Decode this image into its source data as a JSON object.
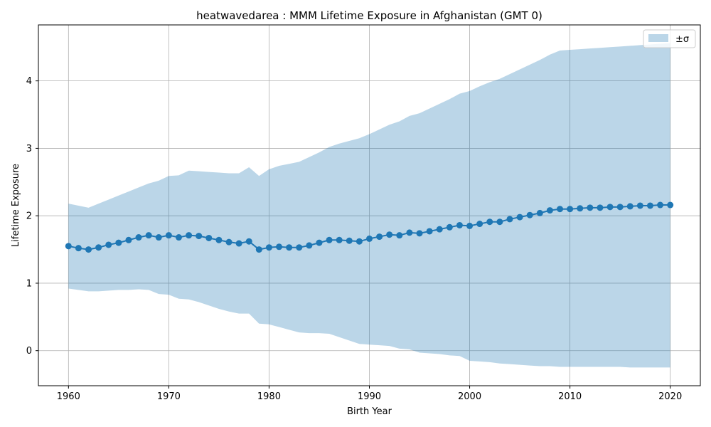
{
  "chart_data": {
    "type": "line",
    "title": "heatwavedarea : MMM Lifetime Exposure in Afghanistan (GMT 0)",
    "xlabel": "Birth Year",
    "ylabel": "Lifetime Exposure",
    "xlim": [
      1957,
      2023
    ],
    "ylim": [
      -0.52,
      4.83
    ],
    "xticks": [
      1960,
      1970,
      1980,
      1990,
      2000,
      2010,
      2020
    ],
    "yticks": [
      0,
      1,
      2,
      3,
      4
    ],
    "grid": true,
    "legend": {
      "position": "top-right",
      "entries": [
        "±σ"
      ]
    },
    "colors": {
      "line": "#1f77b4",
      "band": "#1f77b4",
      "band_opacity": 0.3,
      "grid": "#b0b0b0"
    },
    "x": [
      1960,
      1961,
      1962,
      1963,
      1964,
      1965,
      1966,
      1967,
      1968,
      1969,
      1970,
      1971,
      1972,
      1973,
      1974,
      1975,
      1976,
      1977,
      1978,
      1979,
      1980,
      1981,
      1982,
      1983,
      1984,
      1985,
      1986,
      1987,
      1988,
      1989,
      1990,
      1991,
      1992,
      1993,
      1994,
      1995,
      1996,
      1997,
      1998,
      1999,
      2000,
      2001,
      2002,
      2003,
      2004,
      2005,
      2006,
      2007,
      2008,
      2009,
      2010,
      2011,
      2012,
      2013,
      2014,
      2015,
      2016,
      2017,
      2018,
      2019,
      2020
    ],
    "series": [
      {
        "values": [
          1.55,
          1.52,
          1.5,
          1.53,
          1.57,
          1.6,
          1.64,
          1.68,
          1.71,
          1.68,
          1.71,
          1.68,
          1.71,
          1.7,
          1.67,
          1.64,
          1.61,
          1.59,
          1.62,
          1.5,
          1.53,
          1.54,
          1.53,
          1.53,
          1.56,
          1.6,
          1.64,
          1.64,
          1.63,
          1.62,
          1.66,
          1.69,
          1.72,
          1.71,
          1.75,
          1.74,
          1.77,
          1.8,
          1.83,
          1.86,
          1.85,
          1.88,
          1.91,
          1.91,
          1.95,
          1.98,
          2.01,
          2.04,
          2.08,
          2.1,
          2.1,
          2.11,
          2.12,
          2.12,
          2.13,
          2.13,
          2.14,
          2.15,
          2.15,
          2.16,
          2.16
        ]
      }
    ],
    "band": {
      "name": "±σ",
      "upper": [
        2.18,
        2.15,
        2.12,
        2.18,
        2.24,
        2.3,
        2.36,
        2.42,
        2.48,
        2.52,
        2.59,
        2.6,
        2.67,
        2.66,
        2.65,
        2.64,
        2.63,
        2.63,
        2.72,
        2.59,
        2.69,
        2.74,
        2.77,
        2.8,
        2.87,
        2.94,
        3.02,
        3.07,
        3.11,
        3.15,
        3.21,
        3.28,
        3.35,
        3.4,
        3.48,
        3.52,
        3.59,
        3.66,
        3.73,
        3.81,
        3.85,
        3.92,
        3.98,
        4.03,
        4.1,
        4.17,
        4.24,
        4.31,
        4.39,
        4.45,
        4.46,
        4.47,
        4.48,
        4.49,
        4.5,
        4.51,
        4.52,
        4.53,
        4.54,
        4.55,
        4.56
      ],
      "lower": [
        0.92,
        0.9,
        0.88,
        0.88,
        0.89,
        0.9,
        0.9,
        0.91,
        0.9,
        0.84,
        0.83,
        0.77,
        0.76,
        0.72,
        0.67,
        0.62,
        0.58,
        0.55,
        0.55,
        0.4,
        0.39,
        0.35,
        0.31,
        0.27,
        0.26,
        0.26,
        0.25,
        0.2,
        0.15,
        0.1,
        0.09,
        0.08,
        0.07,
        0.03,
        0.02,
        -0.03,
        -0.04,
        -0.05,
        -0.07,
        -0.08,
        -0.15,
        -0.16,
        -0.17,
        -0.19,
        -0.2,
        -0.21,
        -0.22,
        -0.23,
        -0.23,
        -0.24,
        -0.24,
        -0.24,
        -0.24,
        -0.24,
        -0.24,
        -0.24,
        -0.25,
        -0.25,
        -0.25,
        -0.25,
        -0.25
      ]
    }
  }
}
